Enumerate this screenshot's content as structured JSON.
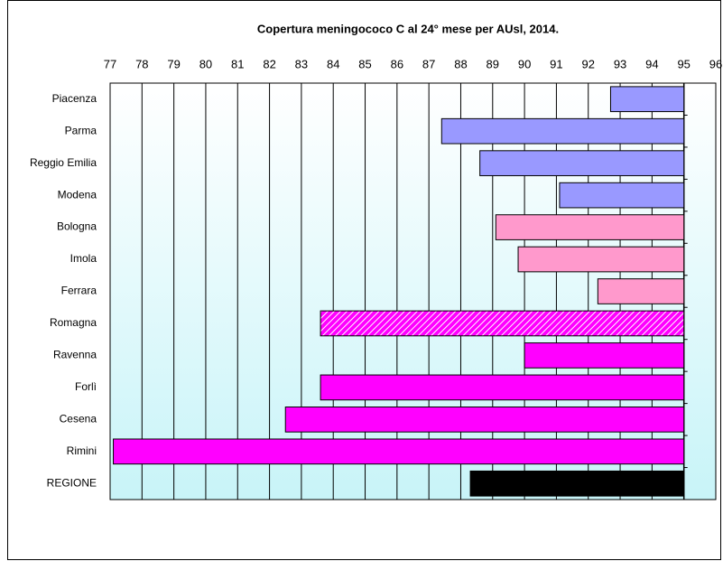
{
  "chart_data": {
    "type": "bar",
    "orientation": "horizontal",
    "title": "Copertura meningococo C al 24° mese per AUsl, 2014.",
    "categories": [
      "Piacenza",
      "Parma",
      "Reggio Emilia",
      "Modena",
      "Bologna",
      "Imola",
      "Ferrara",
      "Romagna",
      "Ravenna",
      "Forlì",
      "Cesena",
      "Rimini",
      "REGIONE"
    ],
    "values": [
      92.7,
      87.4,
      88.6,
      91.1,
      89.1,
      89.8,
      92.3,
      83.6,
      90.0,
      83.6,
      82.5,
      77.1,
      88.3
    ],
    "colors": [
      "#9999ff",
      "#9999ff",
      "#9999ff",
      "#9999ff",
      "#ff99cc",
      "#ff99cc",
      "#ff99cc",
      "#ff00ff",
      "#ff00ff",
      "#ff00ff",
      "#ff00ff",
      "#ff00ff",
      "#000000"
    ],
    "hatch": [
      false,
      false,
      false,
      false,
      false,
      false,
      false,
      true,
      false,
      false,
      false,
      false,
      false
    ],
    "xlim": [
      77,
      96
    ],
    "xticks": [
      77,
      78,
      79,
      80,
      81,
      82,
      83,
      84,
      85,
      86,
      87,
      88,
      89,
      90,
      91,
      92,
      93,
      94,
      95,
      96
    ],
    "x_axis_crosses": 95,
    "x_axis_position": "top",
    "grid": true
  }
}
